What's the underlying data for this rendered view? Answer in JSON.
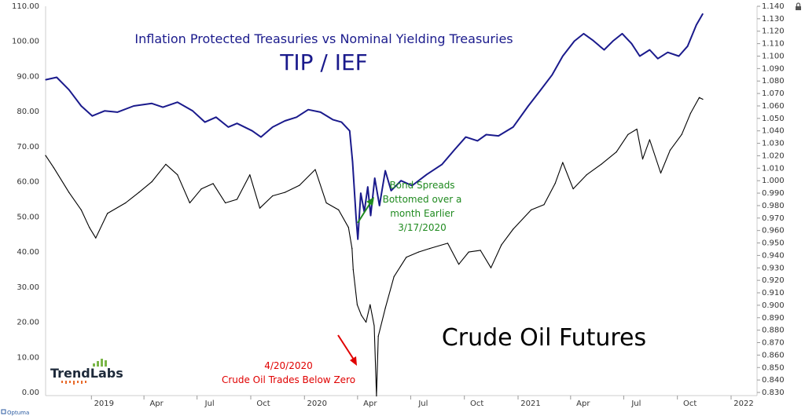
{
  "chart_data": {
    "type": "line",
    "title": "Inflation Protected Treasuries vs Nominal Yielding Treasuries",
    "subtitle": "TIP / IEF",
    "x_ticks": [
      "2019",
      "Apr",
      "Jul",
      "Oct",
      "2020",
      "Apr",
      "Jul",
      "Oct",
      "2021",
      "Apr",
      "Jul",
      "Oct",
      "2022"
    ],
    "left_axis": {
      "ylim": [
        0,
        110
      ],
      "tick_labels": [
        "0.00",
        "10.00",
        "20.00",
        "30.00",
        "40.00",
        "50.00",
        "60.00",
        "70.00",
        "80.00",
        "90.00",
        "100.00",
        "110.00"
      ]
    },
    "right_axis": {
      "ylim": [
        0.83,
        1.14
      ],
      "tick_labels": [
        "0.830",
        "0.840",
        "0.850",
        "0.860",
        "0.870",
        "0.880",
        "0.890",
        "0.900",
        "0.910",
        "0.920",
        "0.930",
        "0.940",
        "0.950",
        "0.960",
        "0.970",
        "0.980",
        "0.990",
        "1.000",
        "1.010",
        "1.020",
        "1.030",
        "1.040",
        "1.050",
        "1.060",
        "1.070",
        "1.080",
        "1.090",
        "1.100",
        "1.110",
        "1.120",
        "1.130",
        "1.140"
      ]
    },
    "series": [
      {
        "name": "TIP / IEF",
        "axis": "right",
        "color": "#1a1a8c",
        "points": [
          [
            "2018-10-01",
            1.081
          ],
          [
            "2018-10-20",
            1.083
          ],
          [
            "2018-11-10",
            1.073
          ],
          [
            "2018-12-01",
            1.06
          ],
          [
            "2018-12-20",
            1.052
          ],
          [
            "2019-01-10",
            1.056
          ],
          [
            "2019-02-01",
            1.055
          ],
          [
            "2019-03-01",
            1.06
          ],
          [
            "2019-04-01",
            1.062
          ],
          [
            "2019-04-20",
            1.059
          ],
          [
            "2019-05-15",
            1.063
          ],
          [
            "2019-06-10",
            1.056
          ],
          [
            "2019-07-01",
            1.047
          ],
          [
            "2019-07-20",
            1.051
          ],
          [
            "2019-08-10",
            1.043
          ],
          [
            "2019-08-25",
            1.046
          ],
          [
            "2019-09-20",
            1.04
          ],
          [
            "2019-10-05",
            1.035
          ],
          [
            "2019-10-25",
            1.043
          ],
          [
            "2019-11-15",
            1.048
          ],
          [
            "2019-12-05",
            1.051
          ],
          [
            "2019-12-25",
            1.057
          ],
          [
            "2020-01-15",
            1.055
          ],
          [
            "2020-02-05",
            1.049
          ],
          [
            "2020-02-20",
            1.047
          ],
          [
            "2020-03-05",
            1.04
          ],
          [
            "2020-03-10",
            1.015
          ],
          [
            "2020-03-16",
            0.97
          ],
          [
            "2020-03-19",
            0.953
          ],
          [
            "2020-03-24",
            0.99
          ],
          [
            "2020-03-30",
            0.975
          ],
          [
            "2020-04-05",
            0.995
          ],
          [
            "2020-04-10",
            0.972
          ],
          [
            "2020-04-17",
            1.002
          ],
          [
            "2020-04-25",
            0.98
          ],
          [
            "2020-05-05",
            1.008
          ],
          [
            "2020-05-15",
            0.992
          ],
          [
            "2020-06-01",
            1.0
          ],
          [
            "2020-06-20",
            0.996
          ],
          [
            "2020-07-15",
            1.005
          ],
          [
            "2020-08-10",
            1.013
          ],
          [
            "2020-09-01",
            1.025
          ],
          [
            "2020-09-20",
            1.035
          ],
          [
            "2020-10-10",
            1.032
          ],
          [
            "2020-10-25",
            1.037
          ],
          [
            "2020-11-15",
            1.036
          ],
          [
            "2020-12-10",
            1.043
          ],
          [
            "2021-01-05",
            1.06
          ],
          [
            "2021-01-25",
            1.072
          ],
          [
            "2021-02-15",
            1.085
          ],
          [
            "2021-03-05",
            1.1
          ],
          [
            "2021-03-25",
            1.112
          ],
          [
            "2021-04-10",
            1.118
          ],
          [
            "2021-04-25",
            1.113
          ],
          [
            "2021-05-15",
            1.105
          ],
          [
            "2021-05-30",
            1.112
          ],
          [
            "2021-06-15",
            1.118
          ],
          [
            "2021-07-01",
            1.11
          ],
          [
            "2021-07-15",
            1.1
          ],
          [
            "2021-08-01",
            1.105
          ],
          [
            "2021-08-15",
            1.098
          ],
          [
            "2021-09-01",
            1.103
          ],
          [
            "2021-09-20",
            1.1
          ],
          [
            "2021-10-05",
            1.108
          ],
          [
            "2021-10-20",
            1.125
          ],
          [
            "2021-10-31",
            1.134
          ]
        ]
      },
      {
        "name": "Crude Oil Futures",
        "axis": "left",
        "color": "#000000",
        "points": [
          [
            "2018-10-01",
            67.5
          ],
          [
            "2018-10-15",
            64.0
          ],
          [
            "2018-11-10",
            57.0
          ],
          [
            "2018-12-01",
            52.0
          ],
          [
            "2018-12-15",
            47.0
          ],
          [
            "2018-12-26",
            44.0
          ],
          [
            "2019-01-15",
            51.0
          ],
          [
            "2019-02-15",
            54.0
          ],
          [
            "2019-03-10",
            57.0
          ],
          [
            "2019-04-01",
            60.0
          ],
          [
            "2019-04-25",
            65.0
          ],
          [
            "2019-05-15",
            62.0
          ],
          [
            "2019-06-05",
            54.0
          ],
          [
            "2019-06-25",
            58.0
          ],
          [
            "2019-07-15",
            59.5
          ],
          [
            "2019-08-05",
            54.0
          ],
          [
            "2019-08-25",
            55.0
          ],
          [
            "2019-09-16",
            62.0
          ],
          [
            "2019-10-03",
            52.5
          ],
          [
            "2019-10-25",
            56.0
          ],
          [
            "2019-11-15",
            57.0
          ],
          [
            "2019-12-10",
            59.0
          ],
          [
            "2020-01-06",
            63.5
          ],
          [
            "2020-01-25",
            54.0
          ],
          [
            "2020-02-15",
            52.0
          ],
          [
            "2020-03-03",
            47.0
          ],
          [
            "2020-03-09",
            41.0
          ],
          [
            "2020-03-11",
            35.0
          ],
          [
            "2020-03-18",
            25.0
          ],
          [
            "2020-03-25",
            22.0
          ],
          [
            "2020-04-02",
            20.0
          ],
          [
            "2020-04-09",
            25.0
          ],
          [
            "2020-04-16",
            19.0
          ],
          [
            "2020-04-20",
            -1.0
          ],
          [
            "2020-04-23",
            16.0
          ],
          [
            "2020-05-05",
            24.0
          ],
          [
            "2020-05-20",
            33.0
          ],
          [
            "2020-06-10",
            38.5
          ],
          [
            "2020-07-01",
            40.0
          ],
          [
            "2020-07-20",
            41.0
          ],
          [
            "2020-08-20",
            42.5
          ],
          [
            "2020-09-08",
            36.5
          ],
          [
            "2020-09-25",
            40.0
          ],
          [
            "2020-10-15",
            40.5
          ],
          [
            "2020-11-02",
            35.5
          ],
          [
            "2020-11-20",
            42.0
          ],
          [
            "2020-12-10",
            46.5
          ],
          [
            "2021-01-10",
            52.0
          ],
          [
            "2021-02-01",
            53.5
          ],
          [
            "2021-02-20",
            59.5
          ],
          [
            "2021-03-05",
            65.5
          ],
          [
            "2021-03-23",
            58.0
          ],
          [
            "2021-04-15",
            62.0
          ],
          [
            "2021-05-10",
            65.0
          ],
          [
            "2021-06-05",
            68.5
          ],
          [
            "2021-06-25",
            73.5
          ],
          [
            "2021-07-10",
            75.0
          ],
          [
            "2021-07-20",
            66.5
          ],
          [
            "2021-08-01",
            72.0
          ],
          [
            "2021-08-20",
            62.5
          ],
          [
            "2021-09-05",
            69.0
          ],
          [
            "2021-09-25",
            73.5
          ],
          [
            "2021-10-10",
            79.5
          ],
          [
            "2021-10-25",
            84.0
          ],
          [
            "2021-10-31",
            83.5
          ]
        ]
      }
    ],
    "annotations": {
      "bond_spreads": [
        "Bond Spreads",
        "Bottomed over a",
        "month Earlier",
        "3/17/2020"
      ],
      "crude_zero": [
        "4/20/2020",
        "Crude Oil Trades Below Zero"
      ],
      "series_label": "Crude Oil Futures"
    },
    "colors": {
      "tip_ief": "#1a1a8c",
      "crude": "#000000",
      "green_annotation": "#1f8a1f",
      "red_annotation": "#e00000"
    },
    "grid": false,
    "legend": "none"
  },
  "logo": {
    "text": "TrendLabs"
  },
  "footer": {
    "brand": "Optuma"
  },
  "icons": {
    "lock": "lock-icon"
  }
}
